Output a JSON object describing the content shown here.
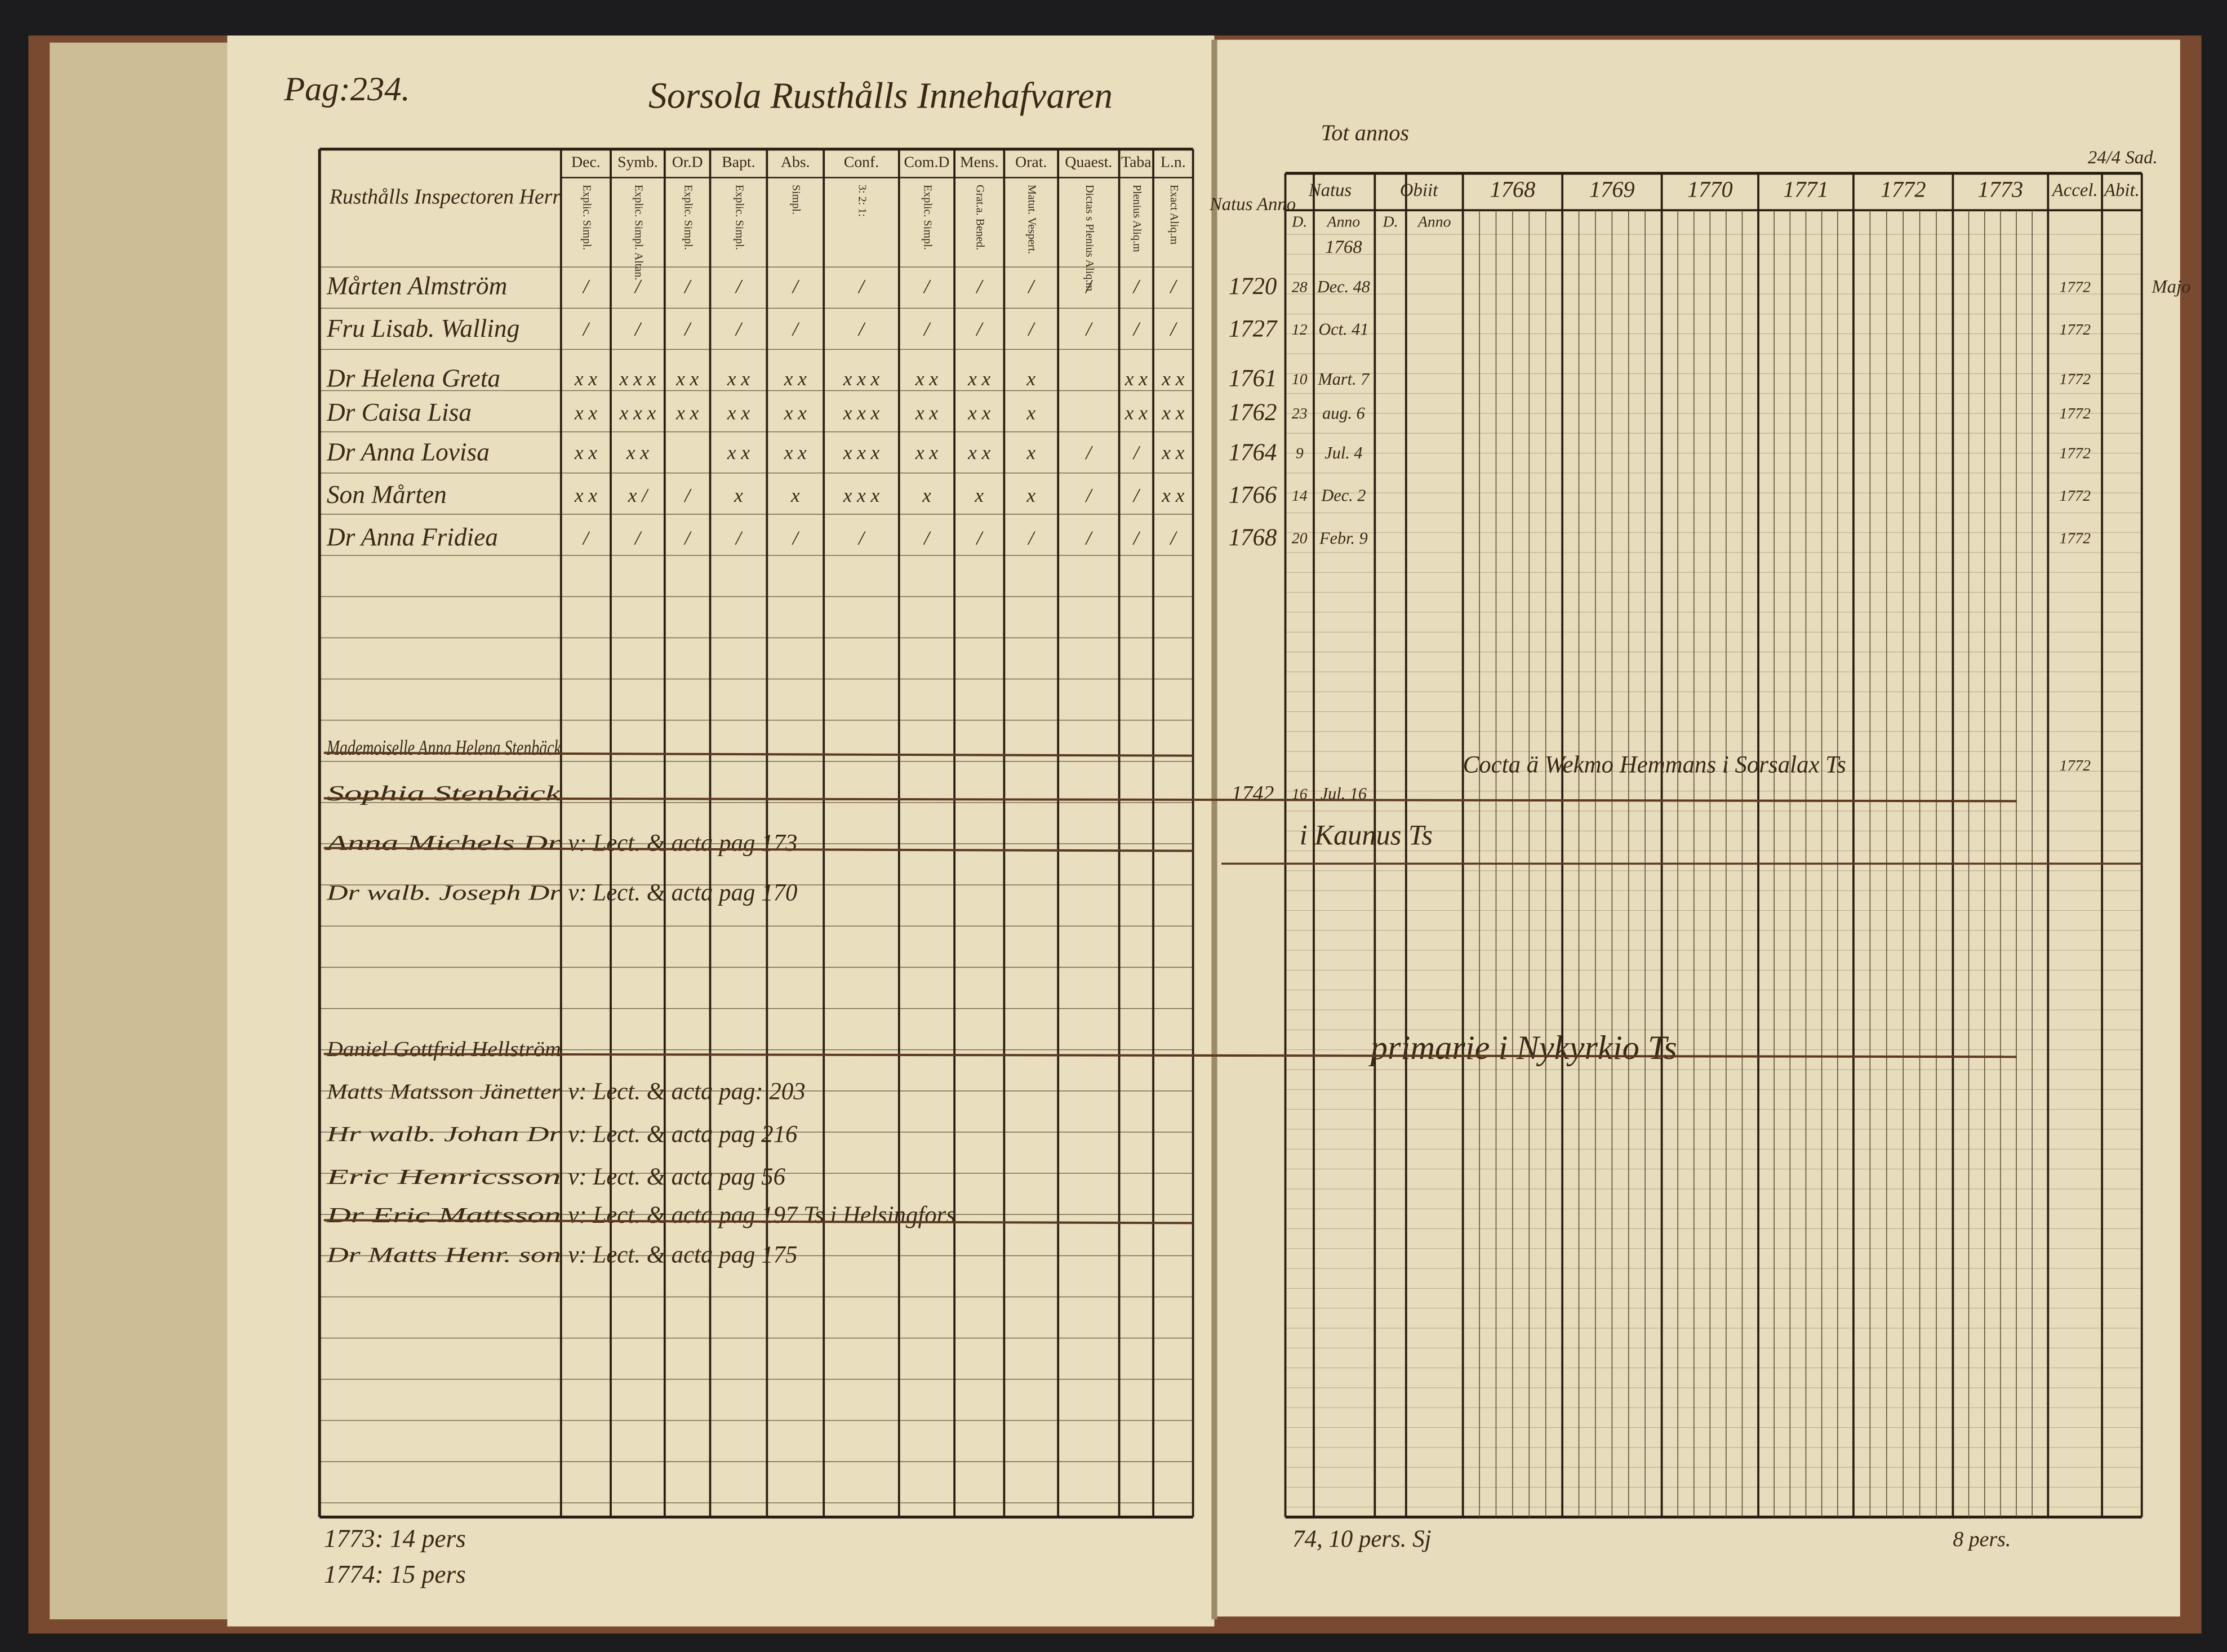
{
  "header": {
    "page": "Pag:234.",
    "title": "Sorsola Rusthålls Innehafvaren",
    "top_note": "Tot annos",
    "corner_note": "24/4 Sad."
  },
  "left_table": {
    "name_header": "Rusthålls Inspectoren Herr",
    "columns": [
      "Dec.",
      "Symb.",
      "Or.D",
      "Bapt.",
      "Abs.",
      "Conf.",
      "Com.D",
      "Mens.",
      "Orat.",
      "Quaest.",
      "Taba",
      "L.n."
    ],
    "subcolumns": [
      "Explic. Simpl.",
      "Explic. Simpl. Altan.",
      "Explic. Simpl.",
      "Explic. Simpl.",
      "Simpl.",
      "3: 2: 1:",
      "Explic. Simpl.",
      "Grat.a. Bened.",
      "Matut. Vespert.",
      "Dictas s Plenius Aliq.m",
      "Plenius Aliq.m",
      "Exact Aliq.m"
    ]
  },
  "right_table": {
    "natus_anno": "Natus Anno",
    "columns": [
      "Natus",
      "Obiit",
      "1768",
      "1769",
      "1770",
      "1771",
      "1772",
      "1773",
      "Accel.",
      "Abit."
    ],
    "subcolumns": [
      "D.",
      "Anno",
      "D.",
      "Anno"
    ],
    "first_date": "1768"
  },
  "residents": [
    {
      "name": "Mårten Almström",
      "marks": [
        "/",
        "/",
        "/",
        "/",
        "/",
        "/",
        "/",
        "/",
        "/",
        "/",
        "/",
        "/"
      ],
      "natus": "1720",
      "day": "28",
      "date": "Dec. 48",
      "accessit": "1772",
      "note": "Majo"
    },
    {
      "name": "Fru Lisab. Walling",
      "marks": [
        "/",
        "/",
        "/",
        "/",
        "/",
        "/",
        "/",
        "/",
        "/",
        "/",
        "/",
        "/"
      ],
      "natus": "1727",
      "day": "12",
      "date": "Oct. 41",
      "accessit": "1772"
    },
    {
      "name": "Dr Helena Greta",
      "marks": [
        "x x",
        "x x x",
        "x x",
        "x x",
        "x x",
        "x x x",
        "x x",
        "x x",
        "x",
        "",
        "x x",
        "x x"
      ],
      "natus": "1761",
      "day": "10",
      "date": "Mart. 7",
      "accessit": "1772"
    },
    {
      "name": "Dr Caisa Lisa",
      "marks": [
        "x x",
        "x x x",
        "x x",
        "x x",
        "x x",
        "x x x",
        "x x",
        "x x",
        "x",
        "",
        "x x",
        "x x"
      ],
      "natus": "1762",
      "day": "23",
      "date": "aug. 6",
      "accessit": "1772"
    },
    {
      "name": "Dr Anna Lovisa",
      "marks": [
        "x x",
        "x x",
        "",
        "x x",
        "x x",
        "x x x",
        "x x",
        "x x",
        "x",
        "/",
        "/",
        "x x"
      ],
      "natus": "1764",
      "day": "9",
      "date": "Jul. 4",
      "accessit": "1772"
    },
    {
      "name": "Son Mårten",
      "marks": [
        "x x",
        "x /",
        "/",
        "x",
        "x",
        "x x x",
        "x",
        "x",
        "x",
        "/",
        "/",
        "x x"
      ],
      "natus": "1766",
      "day": "14",
      "date": "Dec. 2",
      "accessit": "1772"
    },
    {
      "name": "Dr Anna Fridiea",
      "marks": [
        "/",
        "/",
        "/",
        "/",
        "/",
        "/",
        "/",
        "/",
        "/",
        "/",
        "/",
        "/"
      ],
      "natus": "1768",
      "day": "20",
      "date": "Febr. 9",
      "accessit": "1772"
    }
  ],
  "removed": [
    {
      "name": "Mademoiselle Anna Helena Stenbäck",
      "note": "",
      "crossed": true
    },
    {
      "name": "Sophia Stenbäck",
      "note": "Cocta ä Wekmo Hemmans i Sorsalax Ts",
      "natus": "1742",
      "day": "16",
      "date": "Jul. 16",
      "accessit": "1772",
      "crossed": true
    },
    {
      "name": "Anna Michels Dr",
      "note": "v: Lect. & acta pag 173",
      "crossed": true
    },
    {
      "name": "Dr walb. Joseph Dr",
      "note": "v: Lect. & acta pag 170",
      "crossed": false
    },
    {
      "name": "Daniel Gottfrid Hellström",
      "note": "primarie i Nykyrkio Ts",
      "crossed": true
    },
    {
      "name": "Matts Matsson Jänetter",
      "note": "v: Lect. & acta pag: 203",
      "crossed": false
    },
    {
      "name": "Hr walb. Johan Dr",
      "note": "v: Lect. & acta pag 216",
      "crossed": false
    },
    {
      "name": "Eric Henricsson",
      "note": "v: Lect. & acta pag 56",
      "crossed": false
    },
    {
      "name": "Dr Eric Mattsson",
      "note": "v: Lect. & acta pag 197 Ts i Helsingfors",
      "crossed": true
    },
    {
      "name": "Dr Matts Henr. son",
      "note": "v: Lect. & acta pag 175",
      "crossed": false
    }
  ],
  "moved_note": "i Kaunus Ts",
  "footer": {
    "left": [
      "1773: 14 pers",
      "1774: 15 pers"
    ],
    "middle": "74, 10 pers. Sj",
    "right": "8 pers."
  }
}
